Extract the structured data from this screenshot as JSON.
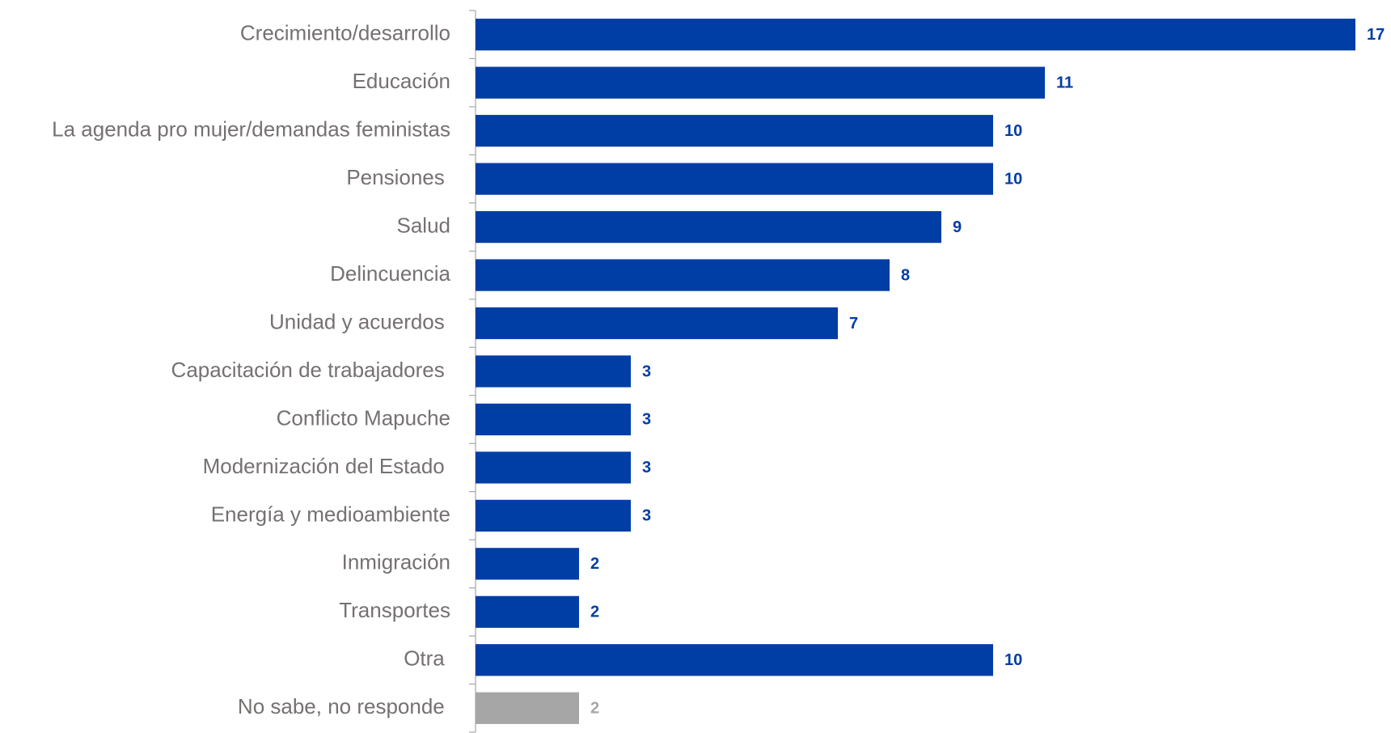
{
  "chart_data": {
    "type": "hbar",
    "categories": [
      "Crecimiento/desarrollo",
      "Educación",
      "La agenda pro mujer/demandas feministas",
      "Pensiones ",
      "Salud",
      "Delincuencia",
      "Unidad y acuerdos ",
      "Capacitación de trabajadores ",
      "Conflicto Mapuche",
      "Modernización del Estado ",
      "Energía y medioambiente",
      "Inmigración",
      "Transportes",
      "Otra ",
      "No sabe, no responde "
    ],
    "values": [
      17,
      11,
      10,
      10,
      9,
      8,
      7,
      3,
      3,
      3,
      3,
      2,
      2,
      10,
      2
    ],
    "colors": [
      "#003DA5",
      "#003DA5",
      "#003DA5",
      "#003DA5",
      "#003DA5",
      "#003DA5",
      "#003DA5",
      "#003DA5",
      "#003DA5",
      "#003DA5",
      "#003DA5",
      "#003DA5",
      "#003DA5",
      "#003DA5",
      "#A6A6A6"
    ],
    "xlim": [
      0,
      17
    ]
  }
}
